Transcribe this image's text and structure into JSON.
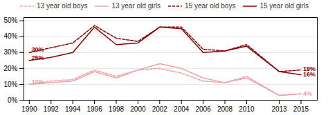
{
  "chart_data": {
    "type": "line",
    "x": [
      1990,
      1992,
      1994,
      1996,
      1998,
      2000,
      2002,
      2004,
      2006,
      2008,
      2010,
      2013,
      2015
    ],
    "series": [
      {
        "name": "13 year old boys",
        "color": "#f0a0a8",
        "line_style": "dashed",
        "values": [
          10,
          12,
          13,
          19,
          15,
          19,
          20,
          17,
          12,
          11,
          15,
          3,
          4
        ]
      },
      {
        "name": "13 year old girls",
        "color": "#f0a0a8",
        "line_style": "solid",
        "values": [
          10,
          11,
          12,
          18,
          14,
          19,
          23,
          20,
          14,
          11,
          14,
          3,
          4
        ]
      },
      {
        "name": "15 year old boys",
        "color": "#8b0000",
        "line_style": "dashed",
        "values": [
          30,
          33,
          36,
          47,
          39,
          37,
          46,
          46,
          32,
          31,
          35,
          18,
          19
        ]
      },
      {
        "name": "15 year old girls",
        "color": "#8b0000",
        "line_style": "solid",
        "values": [
          25,
          27,
          30,
          46,
          35,
          36,
          46,
          45,
          30,
          31,
          34,
          18,
          16
        ]
      }
    ],
    "xlim": [
      1989.5,
      2016.5
    ],
    "xticks": [
      1990,
      1992,
      1994,
      1996,
      1998,
      2000,
      2002,
      2004,
      2006,
      2008,
      2010,
      2013,
      2015
    ],
    "ylim": [
      0,
      52
    ],
    "yticks": [
      {
        "value": 0,
        "label": "0%"
      },
      {
        "value": 10,
        "label": "10%"
      },
      {
        "value": 20,
        "label": "20%"
      },
      {
        "value": 30,
        "label": "30%"
      },
      {
        "value": 40,
        "label": "40%"
      },
      {
        "value": 50,
        "label": "50%"
      }
    ],
    "grid": true,
    "legend": "top",
    "annotations": [
      {
        "text": "30%",
        "x": 1990.2,
        "y": 30.5,
        "color": "#8b0000"
      },
      {
        "text": "25%",
        "x": 1990.2,
        "y": 25.5,
        "color": "#8b0000"
      },
      {
        "text": "10%",
        "x": 1990.2,
        "y": 10.2,
        "color": "#f0a0a8"
      },
      {
        "text": "19%",
        "x": 2015.2,
        "y": 19.5,
        "color": "#8b0000"
      },
      {
        "text": "16%",
        "x": 2015.2,
        "y": 16.0,
        "color": "#8b0000"
      },
      {
        "text": "4%",
        "x": 2015.2,
        "y": 4.0,
        "color": "#f0a0a8"
      }
    ]
  }
}
